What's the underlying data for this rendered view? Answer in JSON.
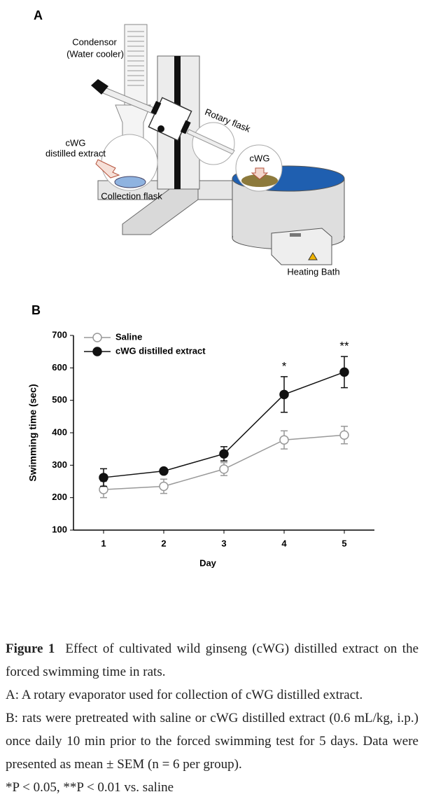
{
  "panel_a": {
    "label": "A",
    "condensor": "Condensor",
    "condensor_note": "(Water cooler)",
    "rotary_flask": "Rotary flask",
    "extract_line1": "cWG",
    "extract_line2": "distilled extract",
    "flask_content": "cWG",
    "collection_flask": "Collection flask",
    "heating_bath": "Heating Bath"
  },
  "chart_data": {
    "type": "line",
    "panel_label": "B",
    "x_label": "Day",
    "y_label": "Swimming time (sec)",
    "x": [
      1,
      2,
      3,
      4,
      5
    ],
    "xlim": [
      0.5,
      5.5
    ],
    "xticks": [
      1,
      2,
      3,
      4,
      5
    ],
    "ylim": [
      100,
      700
    ],
    "yticks": [
      100,
      200,
      300,
      400,
      500,
      600,
      700
    ],
    "series": [
      {
        "name": "Saline",
        "color": "#999999",
        "marker": "open",
        "values": [
          225,
          235,
          288,
          378,
          393
        ],
        "errors": [
          25,
          22,
          20,
          28,
          27
        ]
      },
      {
        "name": "cWG distilled extract",
        "color": "#111111",
        "marker": "filled",
        "values": [
          262,
          282,
          335,
          518,
          587
        ],
        "errors": [
          27,
          8,
          22,
          55,
          48
        ]
      }
    ],
    "annotations": [
      {
        "x": 4,
        "text": "*"
      },
      {
        "x": 5,
        "text": "**"
      }
    ]
  },
  "caption": {
    "figure": "Figure 1",
    "title": "Effect of cultivated wild ginseng (cWG) distilled extract on the forced swimming time in rats.",
    "line_a": "A: A rotary evaporator used for collection of cWG distilled extract.",
    "line_b": "B: rats were pretreated with saline or cWG distilled extract (0.6 mL/kg, i.p.) once daily 10 min prior to the forced swimming test for 5 days. Data were presented as mean ± SEM (n = 6 per group).",
    "footnote": "*P < 0.05, **P < 0.01 vs. saline"
  }
}
